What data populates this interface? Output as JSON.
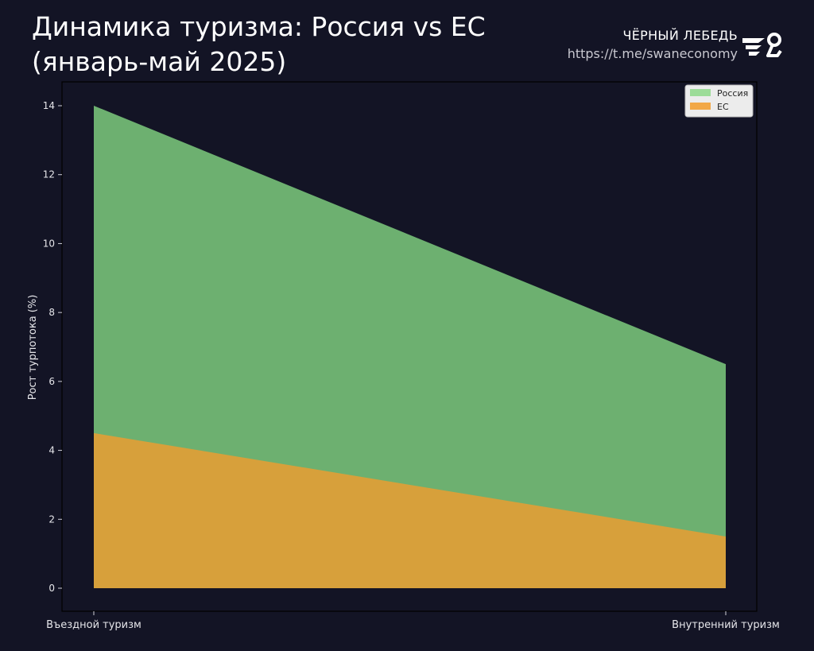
{
  "header": {
    "title_line1": "Динамика туризма: Россия vs ЕС",
    "title_line2": "(январь-май 2025)",
    "brand_name": "ЧЁРНЫЙ ЛЕБЕДЬ",
    "brand_link": "https://t.me/swaneconomy",
    "logo_icon": "swan-logo-icon"
  },
  "chart_data": {
    "type": "area",
    "categories": [
      "Въездной туризм",
      "Внутренний туризм"
    ],
    "series": [
      {
        "name": "Россия",
        "values": [
          14,
          6.5
        ],
        "color": "#6db070"
      },
      {
        "name": "ЕС",
        "values": [
          4.5,
          1.5
        ],
        "color": "#d7a03b"
      }
    ],
    "legend_colors": {
      "Россия": "#9cdc98",
      "ЕС": "#f2a847"
    },
    "xlabel": "",
    "ylabel": "Рост турпотока (%)",
    "ylim": [
      0,
      14
    ],
    "yticks": [
      0,
      2,
      4,
      6,
      8,
      10,
      12,
      14
    ],
    "grid": false,
    "legend_position": "top-right",
    "background": "#131425",
    "axes_color": "#000000"
  }
}
